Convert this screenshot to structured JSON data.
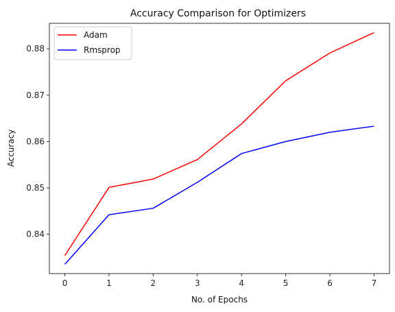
{
  "chart_data": {
    "type": "line",
    "title": "Accuracy  Comparison for Optimizers",
    "xlabel": "No. of Epochs",
    "ylabel": "Accuracy",
    "x": [
      0,
      1,
      2,
      3,
      4,
      5,
      6,
      7
    ],
    "xticks": [
      "0",
      "1",
      "2",
      "3",
      "4",
      "5",
      "6",
      "7"
    ],
    "yticks": [
      "0.84",
      "0.85",
      "0.86",
      "0.87",
      "0.88"
    ],
    "xlim": [
      -0.35,
      7.35
    ],
    "ylim": [
      0.8315,
      0.8855
    ],
    "grid": false,
    "legend": "top-left",
    "series": [
      {
        "name": "Adam",
        "color": "#ff0000",
        "values": [
          0.8354,
          0.8501,
          0.8519,
          0.8561,
          0.8638,
          0.8731,
          0.8791,
          0.8835
        ]
      },
      {
        "name": "Rmsprop",
        "color": "#0000ff",
        "values": [
          0.8335,
          0.8442,
          0.8456,
          0.8512,
          0.8574,
          0.86,
          0.862,
          0.8633
        ]
      }
    ]
  }
}
